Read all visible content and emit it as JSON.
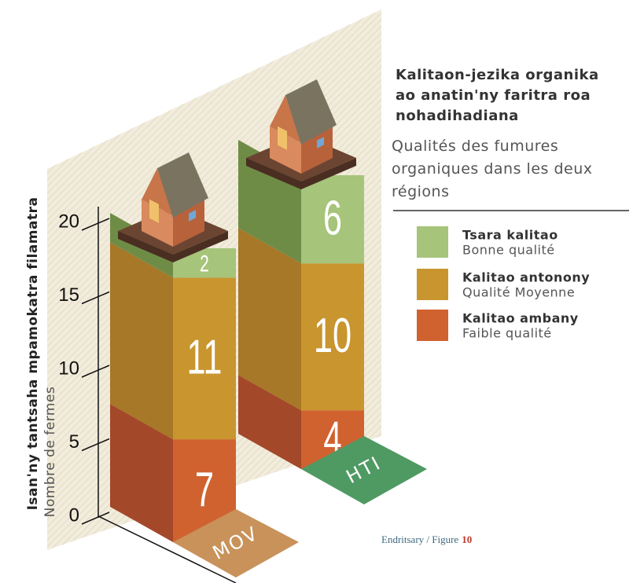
{
  "chart_data": {
    "type": "bar",
    "stacked": true,
    "title": "Kalitaon-jezika organika ao anatin'ny faritra roa nohadihadiana",
    "subtitle": "Qualités des fumures organiques dans les deux régions",
    "y_label": "Isan'ny tantsaha mpamokatra filamatra",
    "y_label_fr": "Nombre de fermes",
    "categories": [
      "MOV",
      "HTI"
    ],
    "category_colors": [
      "#c8925a",
      "#4f9a63"
    ],
    "series": [
      {
        "name": "Kalitao ambany",
        "name_fr": "Faible qualité",
        "color": "#d0622f",
        "side_color": "#a4482a",
        "values": [
          7,
          4
        ]
      },
      {
        "name": "Kalitao antonony",
        "name_fr": "Qualité Moyenne",
        "color": "#c8952f",
        "side_color": "#a67827",
        "values": [
          11,
          10
        ]
      },
      {
        "name": "Tsara kalitao",
        "name_fr": "Bonne qualité",
        "color": "#a6c47a",
        "side_color": "#6f8c47",
        "values": [
          2,
          6
        ]
      }
    ],
    "ylim": [
      0,
      20
    ],
    "yticks": [
      0,
      5,
      10,
      15,
      20
    ],
    "source": "Endritsary / Figure",
    "figure_number": 10
  }
}
